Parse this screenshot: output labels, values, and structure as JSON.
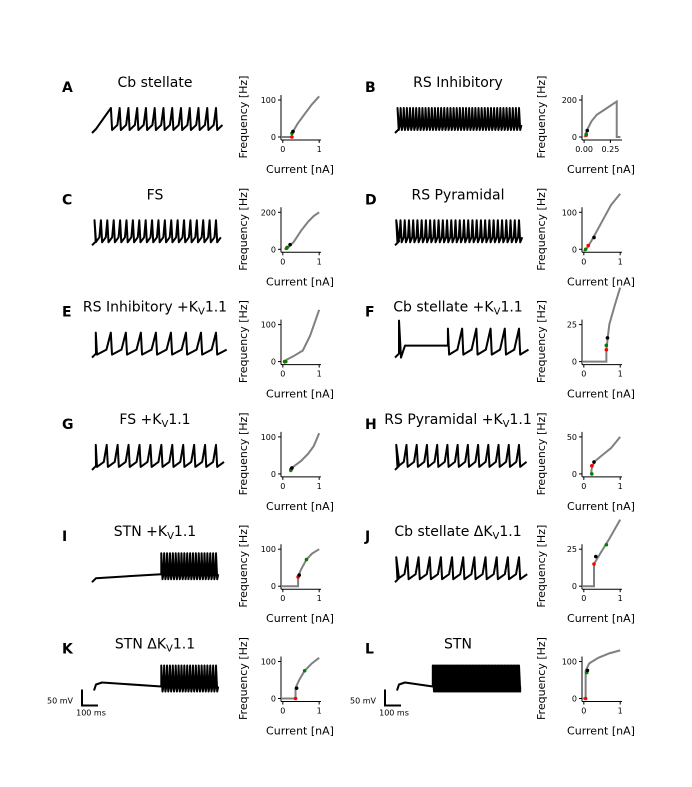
{
  "chart_data": [
    {
      "letter": "A",
      "title": {
        "pre": "Cb stellate",
        "sub": "",
        "post": ""
      },
      "type": "line",
      "trace": {
        "spikes": 13,
        "onset": 0.15
      },
      "xlabel": "Current [nA]",
      "ylabel": "Frequency [Hz]",
      "xticks": [
        "0",
        "1"
      ],
      "xtick_values": [
        0,
        1
      ],
      "xlim": [
        -0.05,
        1.05
      ],
      "yticks": [
        0,
        100
      ],
      "curve": [
        [
          -0.05,
          0
        ],
        [
          0.25,
          0
        ],
        [
          0.25,
          10
        ],
        [
          0.3,
          18
        ],
        [
          0.4,
          35
        ],
        [
          0.6,
          62
        ],
        [
          0.8,
          88
        ],
        [
          1,
          110
        ]
      ],
      "dots": {
        "red": [
          0.25,
          0
        ],
        "green": [
          0.25,
          10
        ],
        "black": [
          0.28,
          15
        ]
      }
    },
    {
      "letter": "B",
      "title": {
        "pre": "RS Inhibitory",
        "sub": "",
        "post": ""
      },
      "type": "line",
      "trace": {
        "spikes": 40,
        "onset": 0.02
      },
      "xlabel": "Current [nA]",
      "ylabel": "Frequency [Hz]",
      "xticks": [
        "0.00",
        "0.25"
      ],
      "xtick_values": [
        0,
        0.25
      ],
      "xlim": [
        -0.02,
        0.36
      ],
      "yticks": [
        0,
        200
      ],
      "curve": [
        [
          0.0,
          0
        ],
        [
          0.01,
          5
        ],
        [
          0.03,
          40
        ],
        [
          0.07,
          85
        ],
        [
          0.12,
          120
        ],
        [
          0.2,
          150
        ],
        [
          0.31,
          192
        ],
        [
          0.31,
          0
        ],
        [
          0.345,
          0
        ]
      ],
      "dots": {
        "red": [
          0.02,
          10
        ],
        "green": [
          0.02,
          15
        ],
        "black": [
          0.03,
          35
        ]
      }
    },
    {
      "letter": "C",
      "title": {
        "pre": "FS",
        "sub": "",
        "post": ""
      },
      "type": "line",
      "trace": {
        "spikes": 20,
        "onset": 0.02
      },
      "xlabel": "Current [nA]",
      "ylabel": "Frequency [Hz]",
      "xticks": [
        "0",
        "1"
      ],
      "xtick_values": [
        0,
        1
      ],
      "xlim": [
        -0.05,
        1.05
      ],
      "yticks": [
        0,
        200
      ],
      "curve": [
        [
          0.05,
          0
        ],
        [
          0.15,
          10
        ],
        [
          0.3,
          40
        ],
        [
          0.5,
          100
        ],
        [
          0.7,
          150
        ],
        [
          0.85,
          180
        ],
        [
          1,
          200
        ]
      ],
      "dots": {
        "red": [
          0.1,
          5
        ],
        "green": [
          0.12,
          10
        ],
        "black": [
          0.2,
          25
        ]
      }
    },
    {
      "letter": "D",
      "title": {
        "pre": "RS Pyramidal",
        "sub": "",
        "post": ""
      },
      "type": "line",
      "trace": {
        "spikes": 30,
        "onset": 0.01
      },
      "xlabel": "Current [nA]",
      "ylabel": "Frequency [Hz]",
      "xticks": [
        "0",
        "1"
      ],
      "xtick_values": [
        0,
        1
      ],
      "xlim": [
        -0.05,
        1.05
      ],
      "yticks": [
        0,
        100
      ],
      "curve": [
        [
          0,
          -5
        ],
        [
          0.1,
          5
        ],
        [
          0.25,
          30
        ],
        [
          0.5,
          75
        ],
        [
          0.75,
          120
        ],
        [
          1,
          150
        ]
      ],
      "dots": {
        "green": [
          0.05,
          0
        ],
        "red": [
          0.12,
          10
        ],
        "black": [
          0.28,
          32
        ]
      }
    },
    {
      "letter": "E",
      "title": {
        "pre": "RS Inhibitory +K",
        "sub": "V",
        "post": "1.1"
      },
      "type": "line",
      "trace": {
        "spikes": 9,
        "onset": 0.03
      },
      "xlabel": "Current [nA]",
      "ylabel": "Frequency [Hz]",
      "xticks": [
        "0",
        "1"
      ],
      "xtick_values": [
        0,
        1
      ],
      "xlim": [
        -0.05,
        1.05
      ],
      "yticks": [
        0,
        100
      ],
      "curve": [
        [
          0.03,
          -5
        ],
        [
          0.1,
          5
        ],
        [
          0.3,
          15
        ],
        [
          0.55,
          30
        ],
        [
          0.75,
          70
        ],
        [
          1,
          140
        ]
      ],
      "dots": {
        "red": [
          0.05,
          0
        ],
        "green": [
          0.08,
          0
        ]
      }
    },
    {
      "letter": "F",
      "title": {
        "pre": "Cb stellate +K",
        "sub": "V",
        "post": "1.1"
      },
      "type": "line",
      "trace": {
        "spikes": 6,
        "onset": 0.42,
        "early_spike": true
      },
      "xlabel": "Current [nA]",
      "ylabel": "Frequency [Hz]",
      "xticks": [
        "0",
        "1"
      ],
      "xtick_values": [
        0,
        1
      ],
      "xlim": [
        -0.05,
        1.05
      ],
      "yticks": [
        0,
        25
      ],
      "curve": [
        [
          -0.05,
          0
        ],
        [
          0.62,
          0
        ],
        [
          0.62,
          8
        ],
        [
          0.7,
          25
        ],
        [
          0.85,
          38
        ],
        [
          1,
          50
        ]
      ],
      "dots": {
        "red": [
          0.62,
          8
        ],
        "green": [
          0.62,
          11
        ],
        "black": [
          0.65,
          16
        ]
      }
    },
    {
      "letter": "G",
      "title": {
        "pre": "FS +K",
        "sub": "V",
        "post": "1.1"
      },
      "type": "line",
      "trace": {
        "spikes": 12,
        "onset": 0.03
      },
      "xlabel": "Current [nA]",
      "ylabel": "Frequency [Hz]",
      "xticks": [
        "0",
        "1"
      ],
      "xtick_values": [
        0,
        1
      ],
      "xlim": [
        -0.05,
        1.05
      ],
      "yticks": [
        0,
        100
      ],
      "curve": [
        [
          0.2,
          5
        ],
        [
          0.3,
          20
        ],
        [
          0.5,
          35
        ],
        [
          0.7,
          55
        ],
        [
          0.85,
          75
        ],
        [
          1,
          110
        ]
      ],
      "dots": {
        "red": [
          0.22,
          10
        ],
        "green": [
          0.22,
          12
        ],
        "black": [
          0.25,
          16
        ]
      }
    },
    {
      "letter": "H",
      "title": {
        "pre": "RS Pyramidal +K",
        "sub": "V",
        "post": "1.1"
      },
      "type": "line",
      "trace": {
        "spikes": 13,
        "onset": 0.01
      },
      "xlabel": "Current [nA]",
      "ylabel": "Frequency [Hz]",
      "xticks": [
        "0",
        "1"
      ],
      "xtick_values": [
        0,
        1
      ],
      "xlim": [
        -0.05,
        1.05
      ],
      "yticks": [
        0,
        50
      ],
      "curve": [
        [
          0.2,
          0
        ],
        [
          0.22,
          8
        ],
        [
          0.3,
          17
        ],
        [
          0.5,
          25
        ],
        [
          0.75,
          35
        ],
        [
          1,
          50
        ]
      ],
      "dots": {
        "green": [
          0.22,
          0
        ],
        "red": [
          0.22,
          11
        ],
        "black": [
          0.28,
          16
        ]
      }
    },
    {
      "letter": "I",
      "title": {
        "pre": "STN +K",
        "sub": "V",
        "post": "1.1"
      },
      "type": "line",
      "trace": {
        "spikes": 20,
        "onset": 0.55
      },
      "xlabel": "Current [nA]",
      "ylabel": "Frequency [Hz]",
      "xticks": [
        "0",
        "1"
      ],
      "xtick_values": [
        0,
        1
      ],
      "xlim": [
        -0.05,
        1.05
      ],
      "yticks": [
        0,
        100
      ],
      "curve": [
        [
          -0.05,
          0
        ],
        [
          0.42,
          0
        ],
        [
          0.42,
          25
        ],
        [
          0.5,
          45
        ],
        [
          0.65,
          72
        ],
        [
          0.8,
          88
        ],
        [
          1,
          100
        ]
      ],
      "dots": {
        "red": [
          0.42,
          25
        ],
        "black": [
          0.45,
          30
        ],
        "green": [
          0.65,
          72
        ]
      }
    },
    {
      "letter": "J",
      "title": {
        "pre": "Cb stellate ΔK",
        "sub": "V",
        "post": "1.1"
      },
      "type": "line",
      "trace": {
        "spikes": 12,
        "onset": 0.01
      },
      "xlabel": "Current [nA]",
      "ylabel": "Frequency [Hz]",
      "xticks": [
        "0",
        "1"
      ],
      "xtick_values": [
        0,
        1
      ],
      "xlim": [
        -0.05,
        1.05
      ],
      "yticks": [
        0,
        25
      ],
      "curve": [
        [
          -0.05,
          0
        ],
        [
          0.28,
          0
        ],
        [
          0.28,
          15
        ],
        [
          0.45,
          22
        ],
        [
          0.7,
          32
        ],
        [
          1,
          45
        ]
      ],
      "dots": {
        "red": [
          0.28,
          15
        ],
        "black": [
          0.33,
          20
        ],
        "green": [
          0.62,
          28
        ]
      }
    },
    {
      "letter": "K",
      "title": {
        "pre": "STN ΔK",
        "sub": "V",
        "post": "1.1"
      },
      "type": "line",
      "trace": {
        "spikes": 20,
        "onset": 0.55,
        "scalebar": true
      },
      "scalebar": {
        "v": "50 mV",
        "t": "100 ms"
      },
      "xlabel": "Current [nA]",
      "ylabel": "Frequency [Hz]",
      "xticks": [
        "0",
        "1"
      ],
      "xtick_values": [
        0,
        1
      ],
      "xlim": [
        -0.05,
        1.05
      ],
      "yticks": [
        0,
        100
      ],
      "curve": [
        [
          -0.05,
          0
        ],
        [
          0.35,
          0
        ],
        [
          0.35,
          28
        ],
        [
          0.45,
          50
        ],
        [
          0.6,
          75
        ],
        [
          0.8,
          95
        ],
        [
          1,
          110
        ]
      ],
      "dots": {
        "red": [
          0.35,
          0
        ],
        "black": [
          0.38,
          28
        ],
        "green": [
          0.6,
          75
        ]
      }
    },
    {
      "letter": "L",
      "title": {
        "pre": "STN",
        "sub": "",
        "post": ""
      },
      "type": "line",
      "trace": {
        "spikes": 60,
        "onset": 0.3,
        "scalebar": true
      },
      "scalebar": {
        "v": "50 mV",
        "t": "100 ms"
      },
      "xlabel": "Current [nA]",
      "ylabel": "Frequency [Hz]",
      "xticks": [
        "0",
        "1"
      ],
      "xtick_values": [
        0,
        1
      ],
      "xlim": [
        -0.05,
        1.05
      ],
      "yticks": [
        0,
        100
      ],
      "curve": [
        [
          -0.05,
          0
        ],
        [
          0.05,
          0
        ],
        [
          0.05,
          75
        ],
        [
          0.15,
          95
        ],
        [
          0.4,
          110
        ],
        [
          0.7,
          122
        ],
        [
          1,
          130
        ]
      ],
      "dots": {
        "red": [
          0.05,
          0
        ],
        "green": [
          0.08,
          70
        ],
        "black": [
          0.1,
          76
        ]
      }
    }
  ],
  "colors": {
    "trace": "#000000",
    "curve": "#808080",
    "red": "#ff0000",
    "green": "#008000",
    "black": "#000000"
  }
}
